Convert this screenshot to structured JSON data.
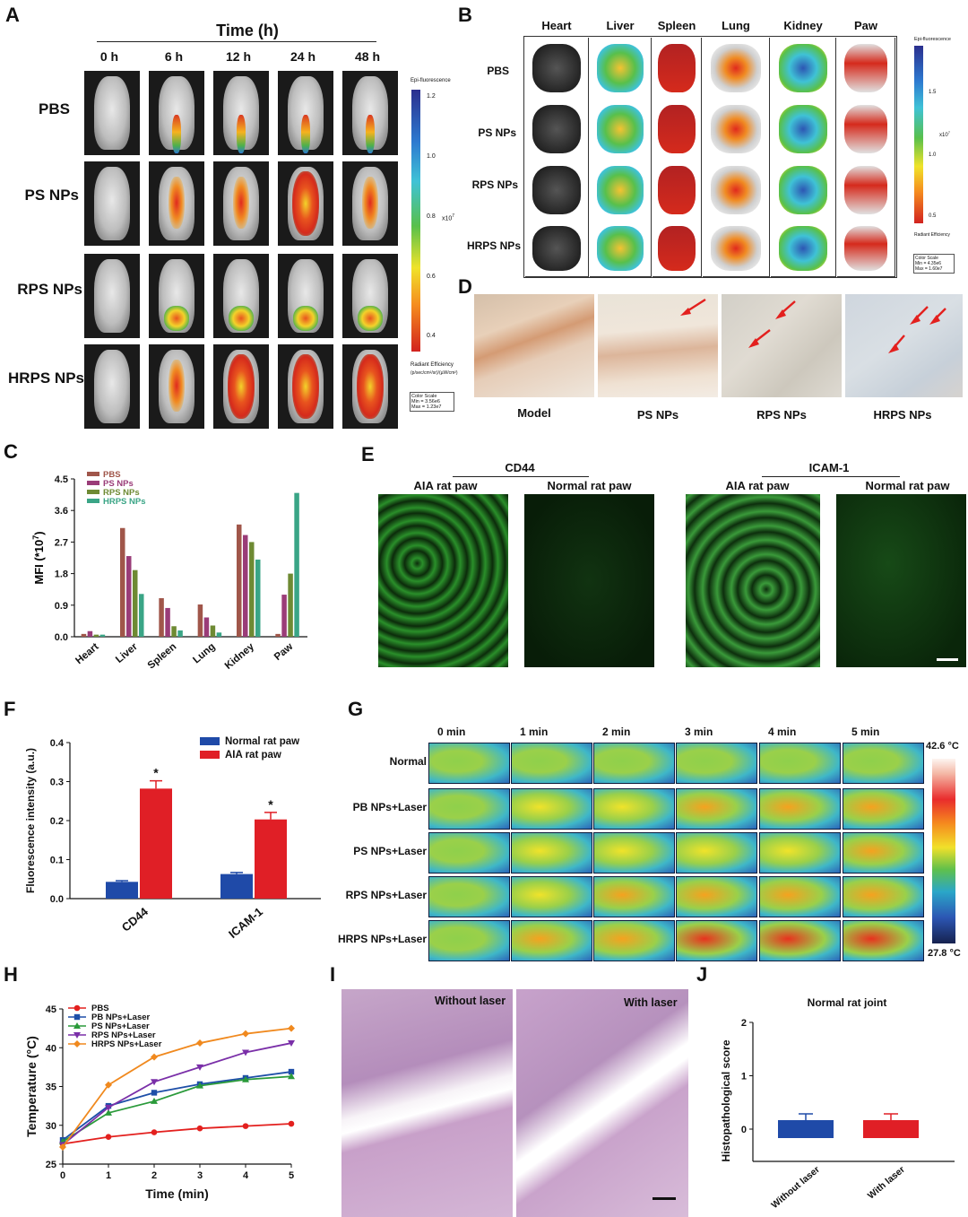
{
  "panels": {
    "A": {
      "letter": "A",
      "time_title": "Time  (h)",
      "times": [
        "0 h",
        "6 h",
        "12 h",
        "24 h",
        "48 h"
      ],
      "rows": [
        "PBS",
        "PS NPs",
        "RPS NPs",
        "HRPS NPs"
      ],
      "scale_title": "Epi-fluorescence",
      "scale_ticks": [
        "1.2",
        "1.0",
        "0.8",
        "0.6",
        "0.4"
      ],
      "scale_unit": "x10",
      "scale_exp": "7",
      "radiant": "Radiant Efficiency",
      "radiant_units": "(p/sec/cm²/sr)/(µW/cm²)",
      "color_scale": [
        "Color Scale",
        "Min = 3.56e6",
        "Max = 1.23e7"
      ]
    },
    "B": {
      "letter": "B",
      "organs": [
        "Heart",
        "Liver",
        "Spleen",
        "Lung",
        "Kidney",
        "Paw"
      ],
      "rows": [
        "PBS",
        "PS NPs",
        "RPS NPs",
        "HRPS NPs"
      ],
      "scale_title": "Epi-fluorescence",
      "scale_ticks": [
        "1.5",
        "1.0",
        "0.5"
      ],
      "scale_unit": "x10",
      "scale_exp": "7",
      "radiant": "Radiant Efficiency",
      "color_scale": [
        "Color Scale",
        "Min = 4.35e6",
        "Max = 1.60e7"
      ]
    },
    "C": {
      "letter": "C",
      "ylabel": "MFI (*10",
      "ylabel_exp": "7",
      "ylabel_close": ")",
      "yticks": [
        "4.5",
        "3.6",
        "2.7",
        "1.8",
        "0.9",
        "0.0"
      ]
    },
    "D": {
      "letter": "D",
      "labels": [
        "Model",
        "PS NPs",
        "RPS NPs",
        "HRPS NPs"
      ]
    },
    "E": {
      "letter": "E",
      "group1": "CD44",
      "group2": "ICAM-1",
      "labels": [
        "AIA rat paw",
        "Normal rat paw",
        "AIA rat paw",
        "Normal rat paw"
      ]
    },
    "F": {
      "letter": "F",
      "ylabel": "Fluorescence intensity (a.u.)",
      "yticks": [
        "0.4",
        "0.3",
        "0.2",
        "0.1",
        "0.0"
      ],
      "sig": "*"
    },
    "G": {
      "letter": "G",
      "times": [
        "0 min",
        "1 min",
        "2 min",
        "3 min",
        "4 min",
        "5 min"
      ],
      "rows": [
        "Normal",
        "PB NPs+Laser",
        "PS NPs+Laser",
        "RPS NPs+Laser",
        "HRPS NPs+Laser"
      ],
      "tmax": "42.6 °C",
      "tmin": "27.8 °C"
    },
    "H": {
      "letter": "H",
      "ylabel": "Temperature (°C)",
      "xlabel": "Time (min)",
      "yticks": [
        "45",
        "40",
        "35",
        "30",
        "25"
      ],
      "xticks": [
        "0",
        "1",
        "2",
        "3",
        "4",
        "5"
      ]
    },
    "I": {
      "letter": "I",
      "left": "Without laser",
      "right": "With laser"
    },
    "J": {
      "letter": "J",
      "title": "Normal rat joint",
      "ylabel": "Histopathological score",
      "yticks": [
        "2",
        "1",
        "0"
      ]
    }
  },
  "colors": {
    "PBS": "#a0564a",
    "PS": "#9a3c78",
    "RPS": "#6e8a33",
    "HRPS": "#3aa586",
    "normal_blue": "#1f4aa8",
    "aia_red": "#e01f26"
  },
  "chart_data": [
    {
      "panel": "C",
      "type": "bar",
      "categories": [
        "Heart",
        "Liver",
        "Spleen",
        "Lung",
        "Kidney",
        "Paw"
      ],
      "ylim": [
        0,
        4.5
      ],
      "series": [
        {
          "name": "PBS",
          "values": [
            0.08,
            3.1,
            1.1,
            0.92,
            3.2,
            0.08
          ]
        },
        {
          "name": "PS NPs",
          "values": [
            0.16,
            2.3,
            0.82,
            0.55,
            2.9,
            1.2
          ]
        },
        {
          "name": "RPS NPs",
          "values": [
            0.06,
            1.9,
            0.3,
            0.32,
            2.7,
            1.8
          ]
        },
        {
          "name": "HRPS NPs",
          "values": [
            0.06,
            1.22,
            0.18,
            0.12,
            2.2,
            4.1
          ]
        }
      ]
    },
    {
      "panel": "F",
      "type": "bar",
      "categories": [
        "CD44",
        "ICAM-1"
      ],
      "ylim": [
        0,
        0.4
      ],
      "series": [
        {
          "name": "Normal rat paw",
          "values": [
            0.043,
            0.063
          ]
        },
        {
          "name": "AIA rat paw",
          "values": [
            0.282,
            0.203
          ]
        }
      ]
    },
    {
      "panel": "H",
      "type": "line",
      "x": [
        0,
        1,
        2,
        3,
        4,
        5
      ],
      "ylim": [
        25,
        45
      ],
      "xlabel": "Time (min)",
      "ylabel": "Temperature (°C)",
      "series": [
        {
          "name": "PBS",
          "values": [
            27.6,
            28.5,
            29.1,
            29.6,
            29.9,
            30.2
          ]
        },
        {
          "name": "PB NPs+Laser",
          "values": [
            28.1,
            32.5,
            34.2,
            35.3,
            36.1,
            36.9
          ]
        },
        {
          "name": "PS NPs+Laser",
          "values": [
            27.9,
            31.6,
            33.1,
            35.1,
            35.9,
            36.3
          ]
        },
        {
          "name": "RPS NPs+Laser",
          "values": [
            27.5,
            32.3,
            35.6,
            37.5,
            39.4,
            40.6
          ]
        },
        {
          "name": "HRPS NPs+Laser",
          "values": [
            27.2,
            35.2,
            38.8,
            40.6,
            41.8,
            42.5
          ]
        }
      ]
    },
    {
      "panel": "J",
      "type": "bar",
      "categories": [
        "Without laser",
        "With laser"
      ],
      "ylim": [
        0,
        2
      ],
      "values": [
        0,
        0
      ]
    }
  ]
}
